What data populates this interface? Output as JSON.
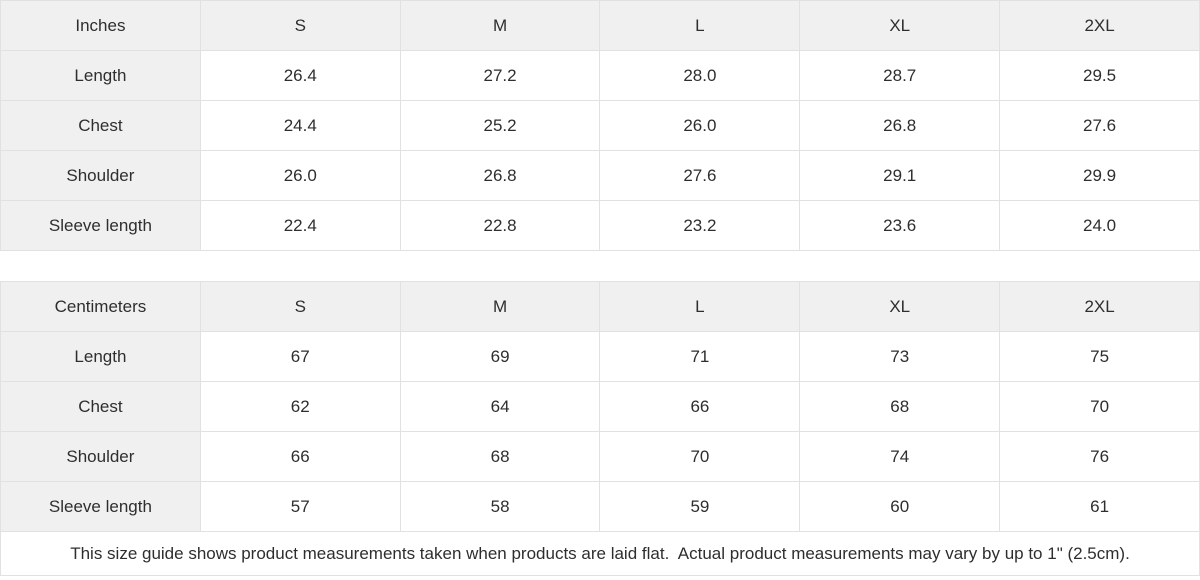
{
  "chart_data": [
    {
      "type": "table",
      "title": "Inches",
      "unit_label": "Inches",
      "columns": [
        "Inches",
        "S",
        "M",
        "L",
        "XL",
        "2XL"
      ],
      "rows": [
        [
          "Length",
          "26.4",
          "27.2",
          "28.0",
          "28.7",
          "29.5"
        ],
        [
          "Chest",
          "24.4",
          "25.2",
          "26.0",
          "26.8",
          "27.6"
        ],
        [
          "Shoulder",
          "26.0",
          "26.8",
          "27.6",
          "29.1",
          "29.9"
        ],
        [
          "Sleeve length",
          "22.4",
          "22.8",
          "23.2",
          "23.6",
          "24.0"
        ]
      ]
    },
    {
      "type": "table",
      "title": "Centimeters",
      "unit_label": "Centimeters",
      "columns": [
        "Centimeters",
        "S",
        "M",
        "L",
        "XL",
        "2XL"
      ],
      "rows": [
        [
          "Length",
          "67",
          "69",
          "71",
          "73",
          "75"
        ],
        [
          "Chest",
          "62",
          "64",
          "66",
          "68",
          "70"
        ],
        [
          "Shoulder",
          "66",
          "68",
          "70",
          "74",
          "76"
        ],
        [
          "Sleeve length",
          "57",
          "58",
          "59",
          "60",
          "61"
        ]
      ]
    }
  ],
  "footer": {
    "note": "This size guide shows product measurements taken when products are laid flat.  Actual product measurements may vary by up to 1\" (2.5cm)."
  },
  "colors": {
    "header_bg": "#f0f0f0",
    "cell_bg": "#ffffff",
    "border": "#e1e1e1",
    "text": "#2e2e2e"
  }
}
